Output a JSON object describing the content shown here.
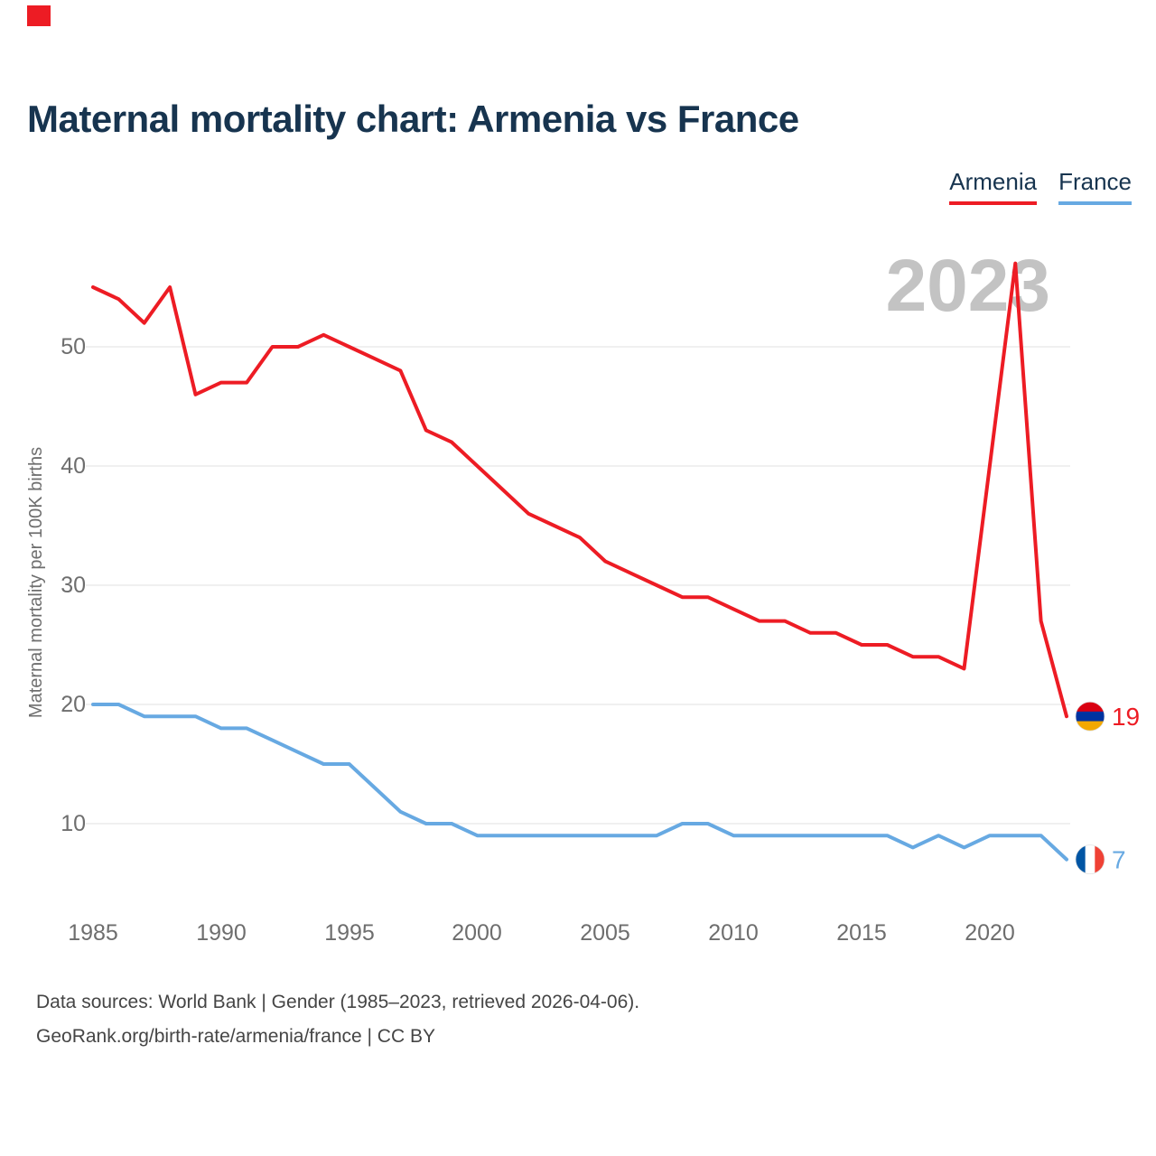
{
  "corner_marker": {
    "color": "#ED1C24",
    "style": "background:#ED1C24"
  },
  "title": "Maternal mortality chart: Armenia vs France",
  "legend": [
    {
      "label": "Armenia",
      "color": "#ED1C24"
    },
    {
      "label": "France",
      "color": "#67A9E2"
    }
  ],
  "footer": {
    "line1": "Data sources: World Bank | Gender (1985–2023, retrieved 2026-04-06).",
    "line2": "GeoRank.org/birth-rate/armenia/france | CC BY"
  },
  "flags": {
    "armenia": [
      "#D90012",
      "#0033A0",
      "#F2A800"
    ],
    "france": [
      "#0055A4",
      "#FFFFFF",
      "#EF4135"
    ]
  },
  "chart_data": {
    "type": "line",
    "title": "Maternal mortality chart: Armenia vs France",
    "annotation": "2023",
    "ylabel": "Maternal mortality per 100K births",
    "xlabel": "",
    "grid": "horizontal-only",
    "legend_position": "top-right",
    "xlim": [
      1985,
      2023
    ],
    "ylim": [
      5,
      58
    ],
    "x_ticks": [
      "1985",
      "1990",
      "1995",
      "2000",
      "2005",
      "2010",
      "2015",
      "2020"
    ],
    "y_ticks": [
      "10",
      "20",
      "30",
      "40",
      "50"
    ],
    "years": [
      1985,
      1986,
      1987,
      1988,
      1989,
      1990,
      1991,
      1992,
      1993,
      1994,
      1995,
      1996,
      1997,
      1998,
      1999,
      2000,
      2001,
      2002,
      2003,
      2004,
      2005,
      2006,
      2007,
      2008,
      2009,
      2010,
      2011,
      2012,
      2013,
      2014,
      2015,
      2016,
      2017,
      2018,
      2019,
      2020,
      2021,
      2022,
      2023
    ],
    "series": [
      {
        "name": "Armenia",
        "color": "#ED1C24",
        "flag": "armenia",
        "end_label": "19",
        "values": [
          55,
          54,
          52,
          55,
          46,
          47,
          47,
          50,
          50,
          51,
          50,
          49,
          48,
          43,
          42,
          40,
          38,
          36,
          35,
          34,
          32,
          31,
          30,
          29,
          29,
          28,
          27,
          27,
          26,
          26,
          25,
          25,
          24,
          24,
          23,
          40,
          57,
          27,
          19
        ]
      },
      {
        "name": "France",
        "color": "#67A9E2",
        "flag": "france",
        "end_label": "7",
        "values": [
          20,
          20,
          19,
          19,
          19,
          18,
          18,
          17,
          16,
          15,
          15,
          13,
          11,
          10,
          10,
          9,
          9,
          9,
          9,
          9,
          9,
          9,
          9,
          10,
          10,
          9,
          9,
          9,
          9,
          9,
          9,
          9,
          8,
          9,
          8,
          9,
          9,
          9,
          7
        ]
      }
    ]
  }
}
